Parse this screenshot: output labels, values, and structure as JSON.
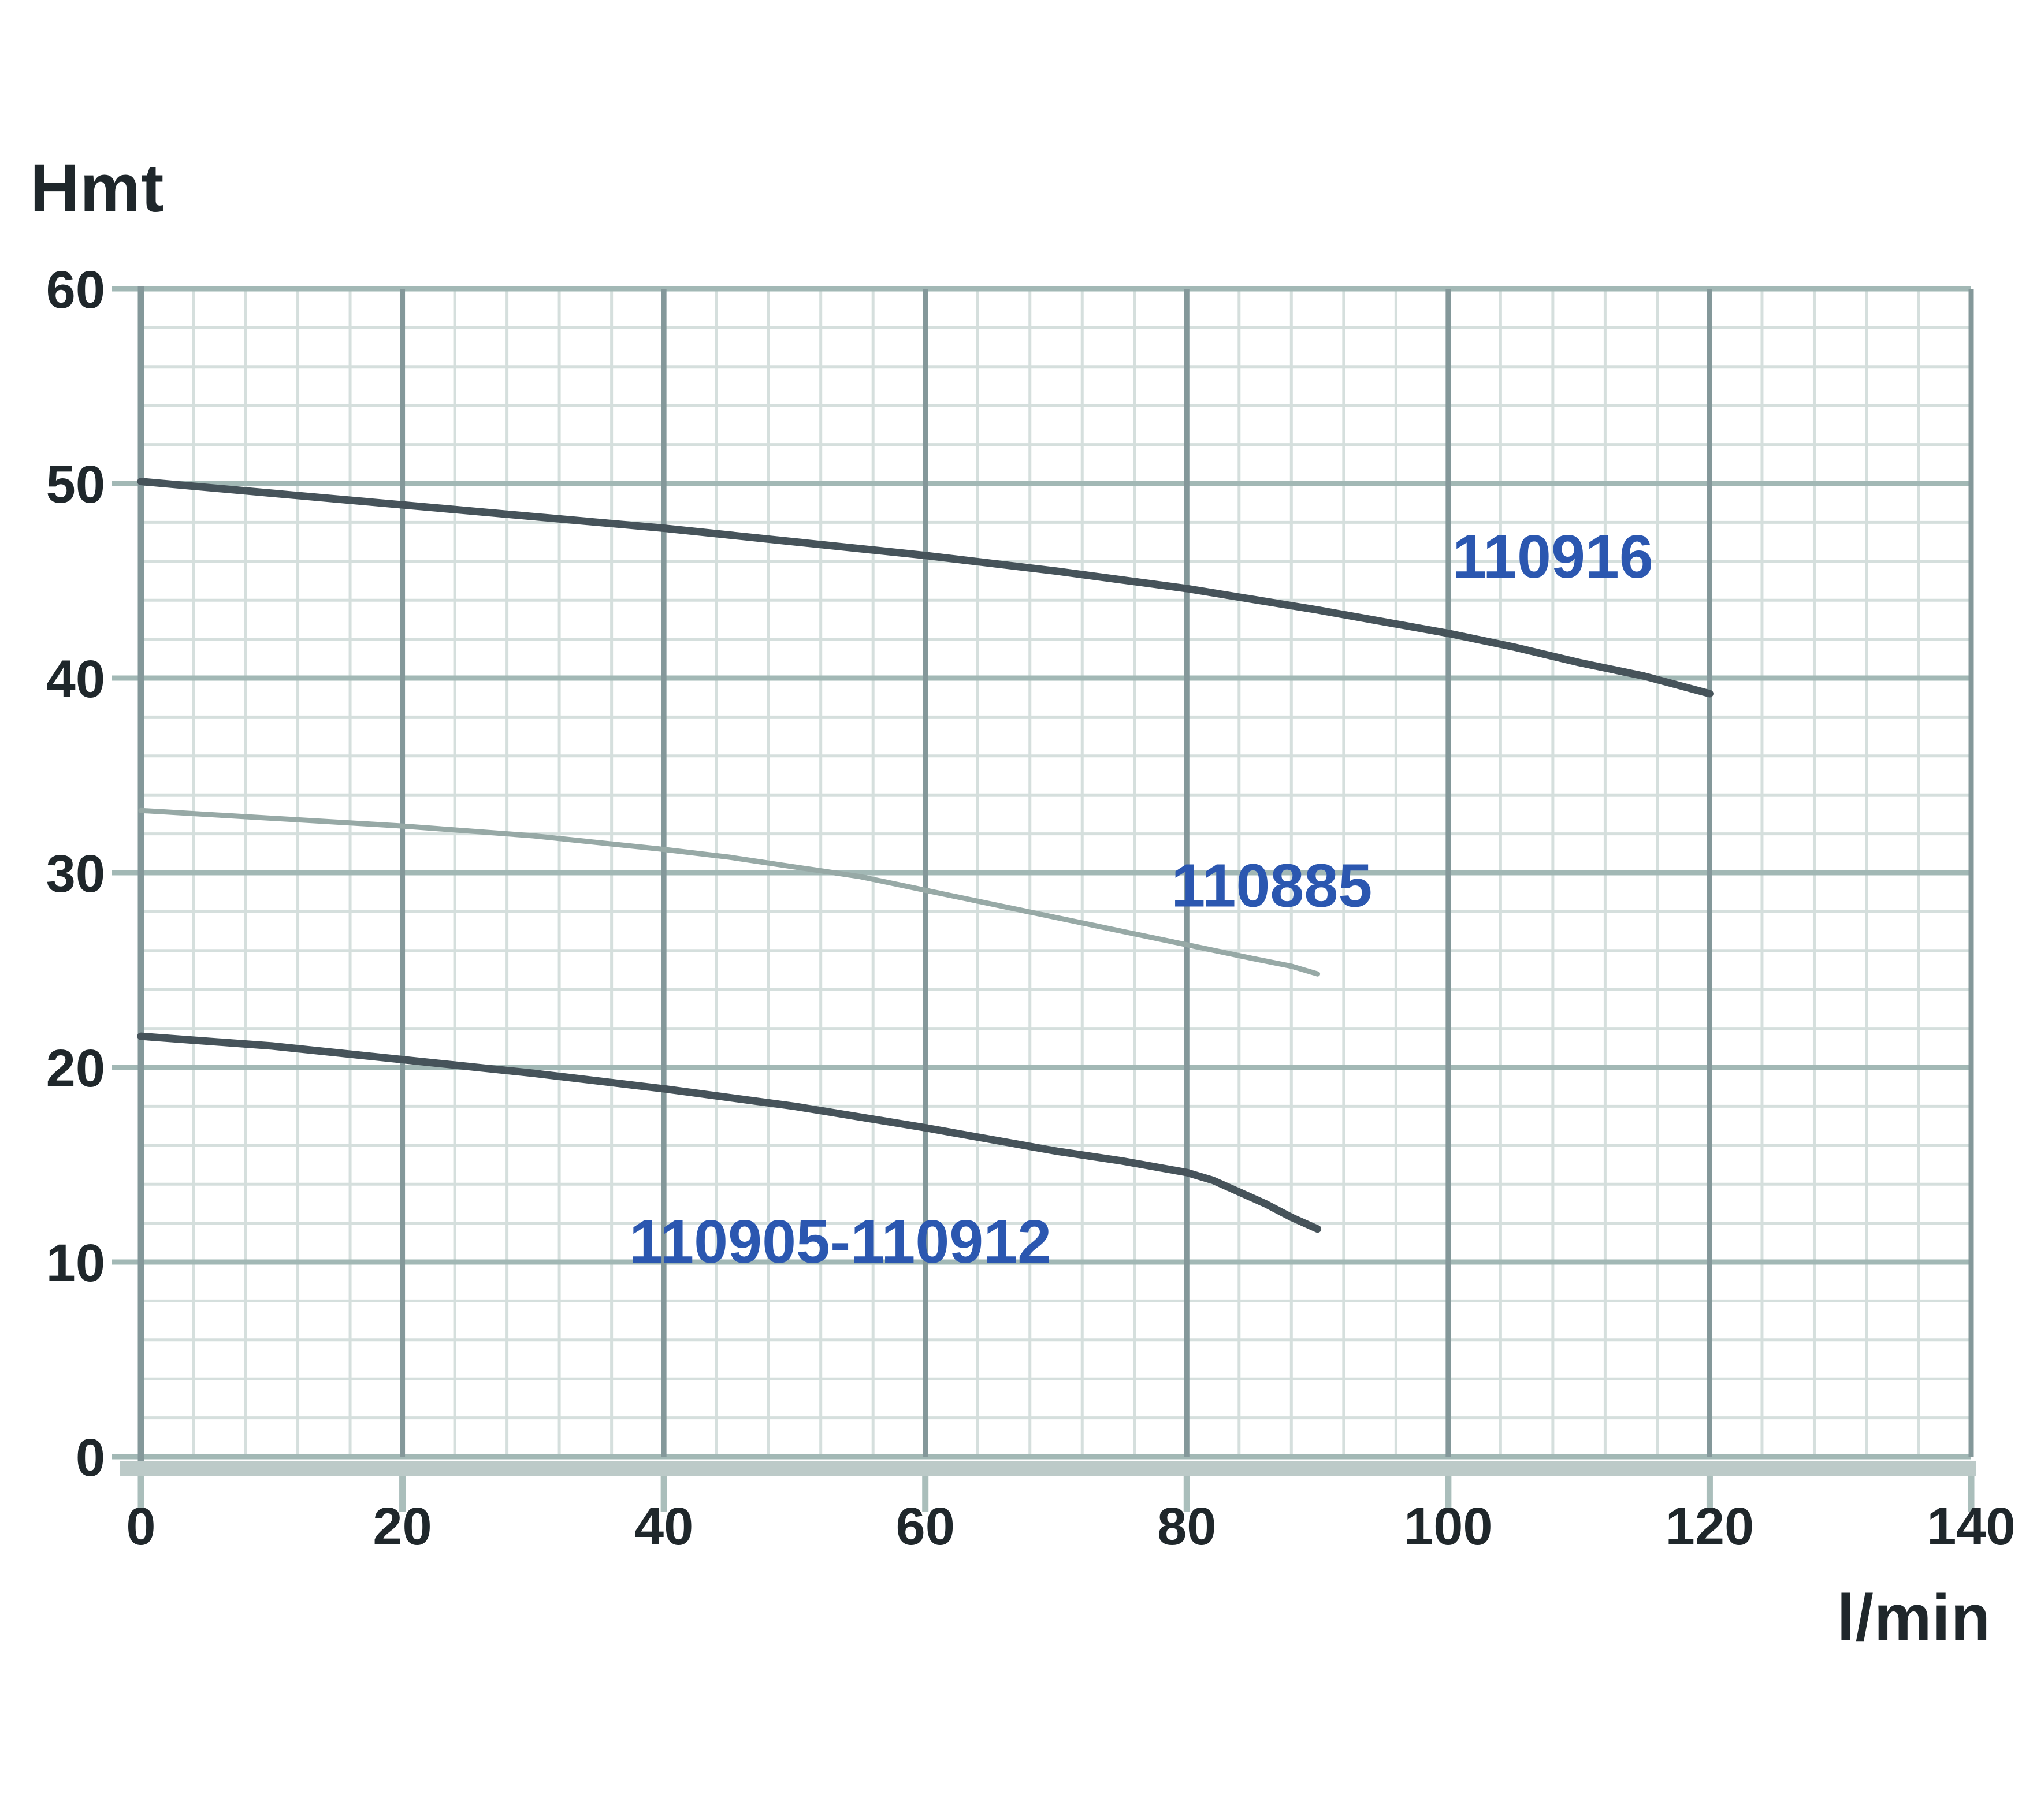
{
  "labels": {
    "y_axis_title": "Hmt",
    "x_axis_title": "l/min"
  },
  "colors": {
    "background": "#ffffff",
    "text_dark": "#1f272b",
    "label_blue": "#2b57b0",
    "grid_minor": "#d5dfdd",
    "grid_major_h": "#a2b8b5",
    "grid_major_v": "#84989a",
    "axis_band": "#bccac8",
    "tick": "#aabebb",
    "curve_dark": "#46535a",
    "curve_light": "#97a9a6"
  },
  "chart_data": {
    "type": "line",
    "title": "",
    "xlabel": "l/min",
    "ylabel": "Hmt",
    "xlim": [
      0,
      140
    ],
    "ylim": [
      0,
      60
    ],
    "x_ticks": [
      0,
      20,
      40,
      60,
      80,
      100,
      120,
      140
    ],
    "y_ticks": [
      0,
      10,
      20,
      30,
      40,
      50,
      60
    ],
    "x_major_step": 20,
    "x_minor_step": 4,
    "y_major_step": 10,
    "y_minor_step": 2,
    "grid": "major+minor",
    "legend_position": "inline-curve-labels",
    "series": [
      {
        "name": "110916",
        "color_key": "curve_dark",
        "stroke_width": 13,
        "label": {
          "text": "110916",
          "x": 108,
          "y": 46.3
        },
        "points": [
          [
            0,
            50.1
          ],
          [
            10,
            49.5
          ],
          [
            20,
            48.9
          ],
          [
            30,
            48.3
          ],
          [
            40,
            47.7
          ],
          [
            50,
            47.0
          ],
          [
            60,
            46.3
          ],
          [
            70,
            45.5
          ],
          [
            80,
            44.6
          ],
          [
            90,
            43.5
          ],
          [
            100,
            42.3
          ],
          [
            105,
            41.6
          ],
          [
            110,
            40.8
          ],
          [
            115,
            40.1
          ],
          [
            120,
            39.2
          ]
        ]
      },
      {
        "name": "110885",
        "color_key": "curve_light",
        "stroke_width": 9,
        "label": {
          "text": "110885",
          "x": 86.5,
          "y": 29.4
        },
        "points": [
          [
            0,
            33.2
          ],
          [
            10,
            32.8
          ],
          [
            20,
            32.4
          ],
          [
            30,
            31.9
          ],
          [
            40,
            31.2
          ],
          [
            45,
            30.8
          ],
          [
            50,
            30.3
          ],
          [
            55,
            29.8
          ],
          [
            60,
            29.1
          ],
          [
            65,
            28.4
          ],
          [
            70,
            27.7
          ],
          [
            75,
            27.0
          ],
          [
            80,
            26.3
          ],
          [
            85,
            25.6
          ],
          [
            88,
            25.2
          ],
          [
            90,
            24.8
          ]
        ]
      },
      {
        "name": "110905-110912",
        "color_key": "curve_dark",
        "stroke_width": 13,
        "label": {
          "text": "110905-110912",
          "x": 53.5,
          "y": 11.1
        },
        "points": [
          [
            0,
            21.6
          ],
          [
            10,
            21.1
          ],
          [
            20,
            20.4
          ],
          [
            30,
            19.7
          ],
          [
            40,
            18.9
          ],
          [
            50,
            18.0
          ],
          [
            60,
            16.9
          ],
          [
            70,
            15.7
          ],
          [
            75,
            15.2
          ],
          [
            80,
            14.6
          ],
          [
            82,
            14.2
          ],
          [
            84,
            13.6
          ],
          [
            86,
            13.0
          ],
          [
            88,
            12.3
          ],
          [
            90,
            11.7
          ]
        ]
      }
    ]
  }
}
